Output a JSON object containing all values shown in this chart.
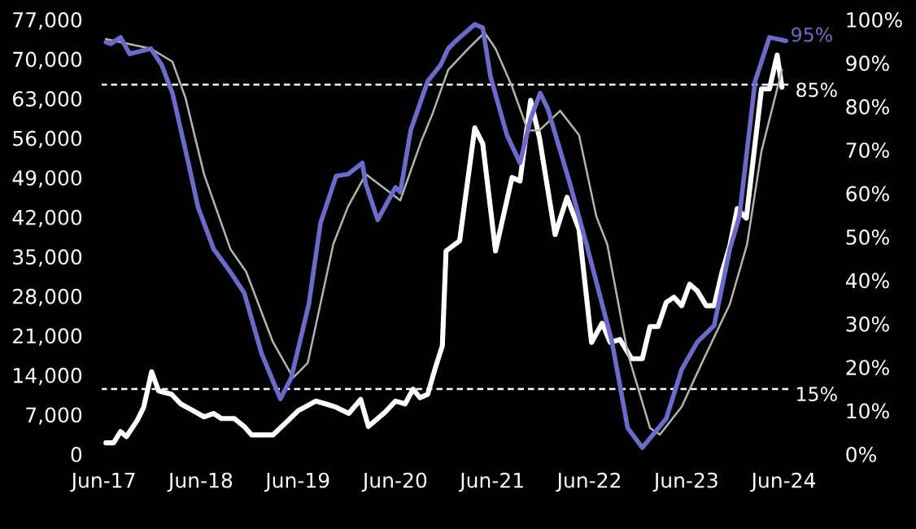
{
  "chart_data": {
    "type": "line",
    "xlim": [
      "2017-05-21",
      "2024-06-27"
    ],
    "xticks": [
      {
        "value": "2017-06-01",
        "label": "Jun-17"
      },
      {
        "value": "2018-06-01",
        "label": "Jun-18"
      },
      {
        "value": "2019-06-01",
        "label": "Jun-19"
      },
      {
        "value": "2020-06-01",
        "label": "Jun-20"
      },
      {
        "value": "2021-06-01",
        "label": "Jun-21"
      },
      {
        "value": "2022-06-01",
        "label": "Jun-22"
      },
      {
        "value": "2023-06-01",
        "label": "Jun-23"
      },
      {
        "value": "2024-06-01",
        "label": "Jun-24"
      }
    ],
    "ylim": [
      0,
      77000
    ],
    "yticks": [
      0,
      {
        "value": 7000,
        "label": "7,000"
      },
      {
        "value": 14000,
        "label": "14,000"
      },
      {
        "value": 21000,
        "label": "21,000"
      },
      {
        "value": 28000,
        "label": "28,000"
      },
      {
        "value": 35000,
        "label": "35,000"
      },
      {
        "value": 42000,
        "label": "42,000"
      },
      {
        "value": 49000,
        "label": "49,000"
      },
      {
        "value": 56000,
        "label": "56,000"
      },
      {
        "value": 63000,
        "label": "63,000"
      },
      {
        "value": 70000,
        "label": "70,000"
      },
      {
        "value": 77000,
        "label": "77,000"
      }
    ],
    "y2lim": [
      0,
      100
    ],
    "y2ticks": [
      {
        "value": 0,
        "label": "0%"
      },
      {
        "value": 10,
        "label": "10%"
      },
      {
        "value": 20,
        "label": "20%"
      },
      {
        "value": 30,
        "label": "30%"
      },
      {
        "value": 40,
        "label": "40%"
      },
      {
        "value": 50,
        "label": "50%"
      },
      {
        "value": 60,
        "label": "60%"
      },
      {
        "value": 70,
        "label": "70%"
      },
      {
        "value": 80,
        "label": "80%"
      },
      {
        "value": 90,
        "label": "90%"
      },
      {
        "value": 100,
        "label": "100%"
      }
    ],
    "marker": "none",
    "ref_lines": [
      {
        "axis": "y2",
        "value": 85,
        "label": "85%",
        "color": "#ffffff",
        "line_style": "dashed"
      },
      {
        "axis": "y2",
        "value": 15,
        "label": "15%",
        "color": "#ffffff",
        "line_style": "dashed"
      }
    ],
    "series": [
      {
        "color": "#ffffff",
        "x": [
          "2017-06-09",
          "2017-07-08",
          "2017-08-03",
          "2017-08-25",
          "2017-10-05",
          "2017-10-29",
          "2017-11-28",
          "2017-12-24",
          "2018-02-11",
          "2018-03-17",
          "2018-05-03",
          "2018-06-13",
          "2018-07-19",
          "2018-08-18",
          "2018-10-05",
          "2018-11-11",
          "2018-12-09",
          "2019-02-27",
          "2019-04-26",
          "2019-06-02",
          "2019-08-07",
          "2019-09-13",
          "2019-10-23",
          "2019-12-09",
          "2020-01-23",
          "2020-02-21",
          "2020-04-23",
          "2020-06-02",
          "2020-07-08",
          "2020-08-07",
          "2020-09-02",
          "2020-10-01",
          "2020-10-29",
          "2020-11-25",
          "2020-12-09",
          "2021-01-29",
          "2021-03-27",
          "2021-04-26",
          "2021-06-13",
          "2021-08-14",
          "2021-09-13",
          "2021-10-23",
          "2021-11-25",
          "2022-01-23",
          "2022-03-09",
          "2022-04-23",
          "2022-06-09",
          "2022-07-19",
          "2022-08-18",
          "2022-09-24",
          "2022-11-07",
          "2022-12-17",
          "2023-01-15",
          "2023-02-14",
          "2023-03-17",
          "2023-04-15",
          "2023-05-14",
          "2023-06-13",
          "2023-07-12",
          "2023-08-14",
          "2023-09-13",
          "2023-10-12",
          "2023-11-11",
          "2023-12-09",
          "2024-01-12",
          "2024-03-09",
          "2024-04-08",
          "2024-05-07",
          "2024-05-25"
        ],
        "values": [
          2000,
          2000,
          4000,
          3100,
          6000,
          8300,
          14600,
          11200,
          10600,
          8900,
          7700,
          6600,
          7200,
          6300,
          6300,
          4900,
          3400,
          3400,
          6000,
          7700,
          9400,
          8900,
          8300,
          7200,
          9700,
          4900,
          7400,
          9400,
          8900,
          11500,
          10000,
          10600,
          15200,
          19200,
          36000,
          37800,
          57800,
          55000,
          36000,
          49000,
          48400,
          62700,
          56100,
          38900,
          45500,
          39800,
          19800,
          23200,
          19800,
          20300,
          16900,
          16900,
          22600,
          22600,
          26900,
          27800,
          26300,
          30100,
          28900,
          26300,
          26300,
          32100,
          36900,
          43500,
          41800,
          64700,
          64700,
          70700,
          65000
        ]
      },
      {
        "color": "#6b6bcc",
        "axis": "y2",
        "x": [
          "2017-06-09",
          "2017-06-27",
          "2017-08-03",
          "2017-09-06",
          "2017-11-25",
          "2018-01-05",
          "2018-02-14",
          "2018-04-15",
          "2018-05-21",
          "2018-07-19",
          "2018-09-20",
          "2018-11-11",
          "2019-01-15",
          "2019-03-27",
          "2019-05-07",
          "2019-07-12",
          "2019-08-25",
          "2019-10-23",
          "2019-12-06",
          "2020-01-29",
          "2020-02-11",
          "2020-03-27",
          "2020-06-02",
          "2020-06-20",
          "2020-07-29",
          "2020-10-01",
          "2020-11-18",
          "2020-12-17",
          "2021-01-15",
          "2021-03-27",
          "2021-04-26",
          "2021-05-25",
          "2021-07-26",
          "2021-09-13",
          "2021-10-23",
          "2021-11-28",
          "2021-12-27",
          "2022-03-20",
          "2022-05-21",
          "2022-08-25",
          "2022-10-23",
          "2022-12-17",
          "2023-03-17",
          "2023-05-14",
          "2023-07-12",
          "2023-09-13",
          "2023-11-11",
          "2023-12-17",
          "2024-02-14",
          "2024-04-08",
          "2024-06-09"
        ],
        "values": [
          94.8,
          94.4,
          95.9,
          92.1,
          93.3,
          89.5,
          83.1,
          67,
          56.9,
          47.2,
          41.9,
          37.1,
          23.2,
          12.7,
          17.6,
          34.5,
          53.2,
          64,
          64.4,
          67,
          62.2,
          53.9,
          61.4,
          60.3,
          74.5,
          85.8,
          89.5,
          93.3,
          95.1,
          98.9,
          98.1,
          86.9,
          73.4,
          67,
          77.2,
          83.1,
          79.4,
          62.2,
          48.3,
          25.8,
          6,
          1.5,
          8.2,
          19.5,
          25.8,
          29.6,
          47.2,
          54.7,
          85.8,
          95.9,
          95.1
        ],
        "value_labels": [
          null,
          null,
          null,
          null,
          null,
          null,
          null,
          null,
          null,
          null,
          null,
          null,
          null,
          null,
          null,
          null,
          null,
          null,
          null,
          null,
          null,
          null,
          null,
          null,
          null,
          null,
          null,
          null,
          null,
          null,
          null,
          null,
          null,
          null,
          null,
          null,
          null,
          null,
          null,
          null,
          null,
          null,
          null,
          null,
          null,
          null,
          null,
          null,
          null,
          null,
          "95%"
        ]
      },
      {
        "color": "#b4b4aa",
        "axis": "y2",
        "x": [
          "2017-06-09",
          "2017-11-25",
          "2018-02-14",
          "2018-04-04",
          "2018-06-13",
          "2018-09-20",
          "2018-11-18",
          "2019-02-27",
          "2019-05-14",
          "2019-07-08",
          "2019-10-12",
          "2019-12-06",
          "2020-02-11",
          "2020-06-20",
          "2020-09-06",
          "2020-10-19",
          "2020-12-17",
          "2021-03-02",
          "2021-05-03",
          "2021-06-13",
          "2021-08-14",
          "2021-10-12",
          "2021-11-25",
          "2022-02-11",
          "2022-04-23",
          "2022-06-27",
          "2022-08-07",
          "2022-10-23",
          "2023-01-15",
          "2023-02-21",
          "2023-05-14",
          "2023-07-29",
          "2023-11-11",
          "2024-01-15",
          "2024-03-09",
          "2024-05-25"
        ],
        "values": [
          95.5,
          93.3,
          90.3,
          82,
          64.4,
          47.2,
          42,
          25.8,
          17.6,
          21,
          48.3,
          56.9,
          64.4,
          58.4,
          71.9,
          78.3,
          88.4,
          93.3,
          97,
          93.3,
          84.6,
          74.5,
          74.5,
          79,
          73.4,
          54.7,
          48.3,
          23.2,
          6,
          4.5,
          10.9,
          21,
          34.5,
          48.3,
          69.7,
          88.4
        ]
      }
    ]
  }
}
